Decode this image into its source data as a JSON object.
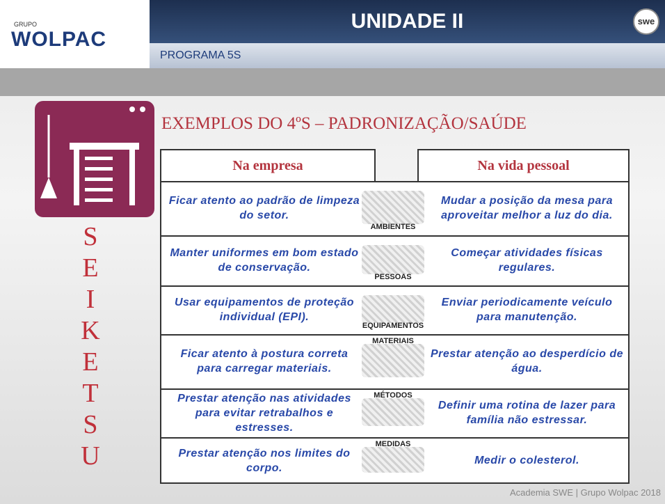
{
  "header": {
    "logo_small": "GRUPO",
    "logo": "WOLPAC",
    "title": "UNIDADE II",
    "subtitle": "PROGRAMA 5S",
    "badge": "swe"
  },
  "heading": "EXEMPLOS DO 4ºS – PADRONIZAÇÃO/SAÚDE",
  "vertical_word": "SEIKETSU",
  "table": {
    "headers": [
      "Na empresa",
      "Na vida pessoal"
    ],
    "rows": [
      {
        "left": "Ficar atento ao padrão de limpeza do setor.",
        "label": "AMBIENTES",
        "right": "Mudar a posição da mesa para aproveitar melhor a luz do dia."
      },
      {
        "left": "Manter uniformes em bom estado de conservação.",
        "label": "PESSOAS",
        "right": "Começar atividades físicas regulares."
      },
      {
        "left": "Usar equipamentos de proteção individual (EPI).",
        "label": "EQUIPAMENTOS",
        "right": "Enviar periodicamente veículo para manutenção."
      },
      {
        "left": "Ficar atento à postura correta para carregar materiais.",
        "label": "MATERIAIS",
        "right": "Prestar atenção ao desperdício de água."
      },
      {
        "left": "Prestar atenção nas atividades para evitar retrabalhos e estresses.",
        "label": "MÉTODOS",
        "right": "Definir uma rotina de lazer para família não estressar."
      },
      {
        "left": "Prestar atenção nos limites do corpo.",
        "label": "MEDIDAS",
        "right": "Medir o colesterol."
      }
    ]
  },
  "footer": "Academia SWE | Grupo Wolpac 2018"
}
